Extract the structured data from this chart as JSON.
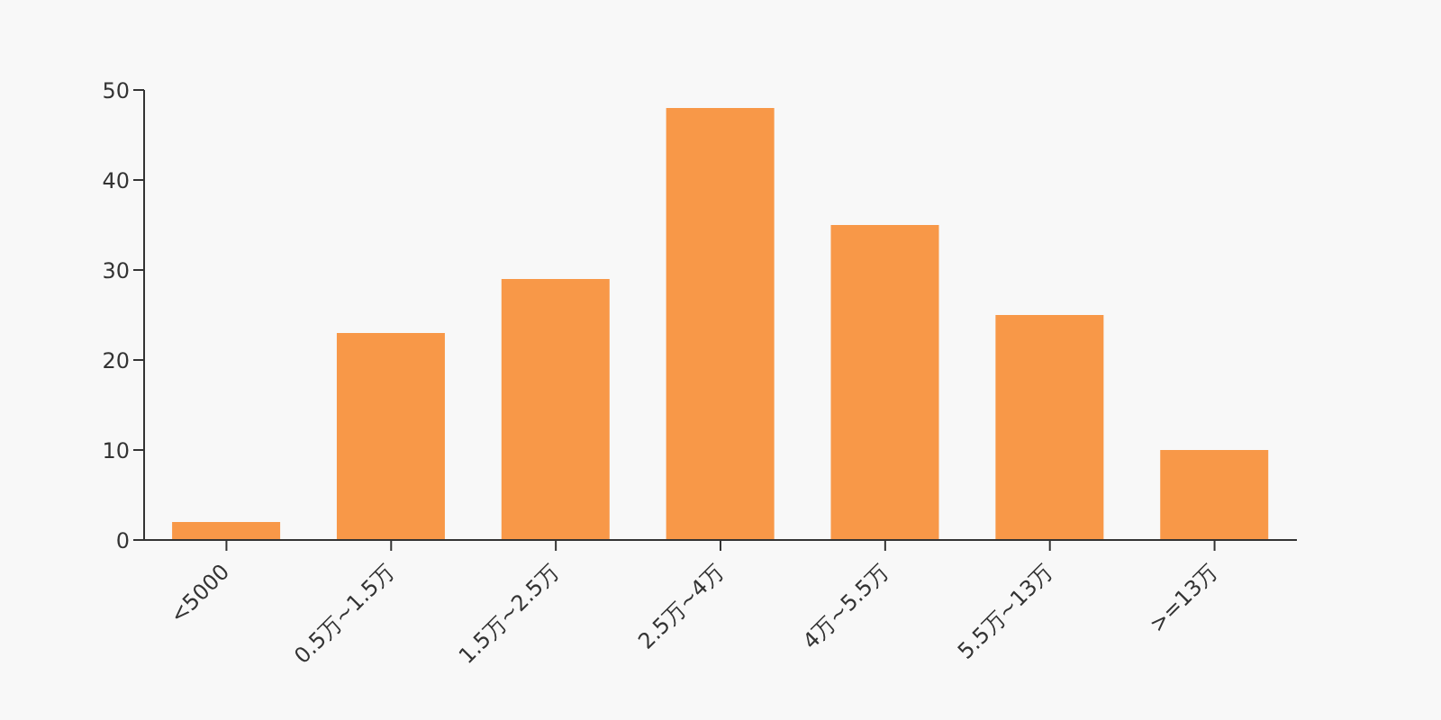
{
  "chart_data": {
    "type": "bar",
    "categories": [
      "<5000",
      "0.5万~1.5万",
      "1.5万~2.5万",
      "2.5万~4万",
      "4万~5.5万",
      "5.5万~13万",
      ">=13万"
    ],
    "values": [
      2,
      23,
      29,
      48,
      35,
      25,
      10
    ],
    "color": "#f89848",
    "ylim": [
      0,
      50
    ],
    "yticks": [
      0,
      10,
      20,
      30,
      40,
      50
    ],
    "grid": false,
    "legend": false
  }
}
